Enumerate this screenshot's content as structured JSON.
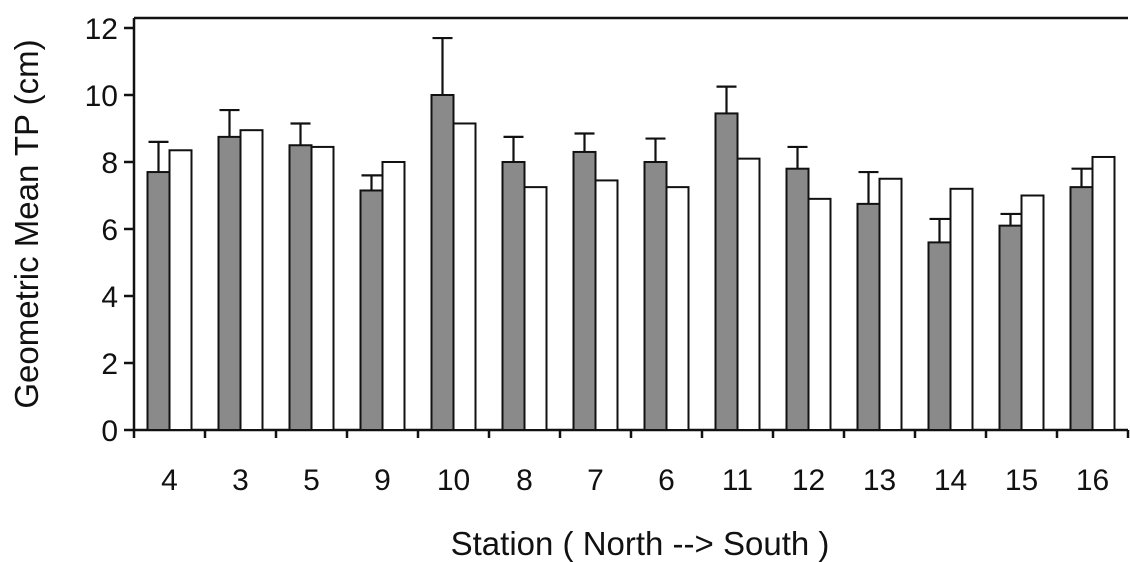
{
  "chart_data": {
    "type": "bar",
    "title": "",
    "xlabel": "Station ( North --> South )",
    "ylabel": "Geometric Mean TP (cm)",
    "ylim": [
      0,
      12
    ],
    "yticks": [
      0,
      2,
      4,
      6,
      8,
      10,
      12
    ],
    "grid": false,
    "legend": "none",
    "categories": [
      "4",
      "3",
      "5",
      "9",
      "10",
      "8",
      "7",
      "6",
      "11",
      "12",
      "13",
      "14",
      "15",
      "16"
    ],
    "series": [
      {
        "style": "filled",
        "color": "#8a8a8a",
        "values": [
          7.7,
          8.75,
          8.5,
          7.15,
          10.0,
          8.0,
          8.3,
          8.0,
          9.45,
          7.8,
          6.75,
          5.6,
          6.1,
          7.25
        ],
        "error_upper": [
          8.6,
          9.55,
          9.15,
          7.6,
          11.7,
          8.75,
          8.85,
          8.7,
          10.25,
          8.45,
          7.7,
          6.3,
          6.45,
          7.8
        ]
      },
      {
        "style": "open",
        "color": "#ffffff",
        "values": [
          8.35,
          8.95,
          8.45,
          8.0,
          9.15,
          7.25,
          7.45,
          7.25,
          8.1,
          6.9,
          7.5,
          7.2,
          7.0,
          8.15
        ]
      }
    ]
  }
}
